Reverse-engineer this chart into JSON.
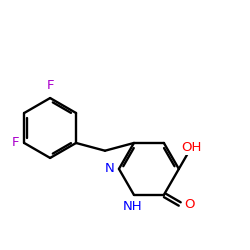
{
  "bg": "#ffffff",
  "bc": "#000000",
  "lw": 1.7,
  "fs": 9.5,
  "fig_w": 2.5,
  "fig_h": 2.5,
  "dpi": 100,
  "colors": {
    "F": "#aa00cc",
    "N": "#0000ff",
    "O": "#ff0000"
  },
  "xlim": [
    0.2,
    8.5
  ],
  "ylim": [
    2.0,
    8.2
  ]
}
